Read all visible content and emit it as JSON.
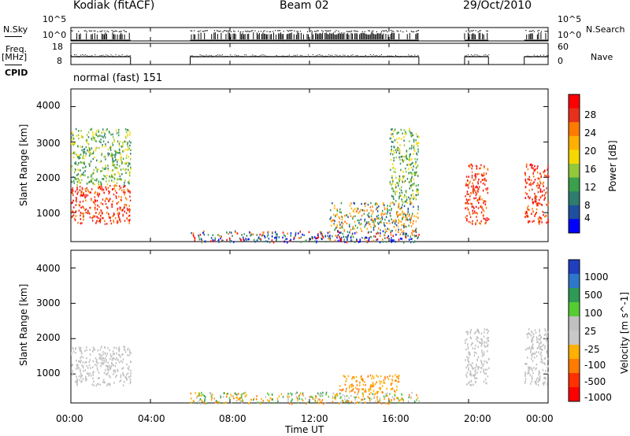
{
  "header": {
    "site": "Kodiak (fitACF)",
    "beam": "Beam 02",
    "date": "29/Oct/2010"
  },
  "top_panels": {
    "nsky_label": "N.Sky",
    "nsearch_label": "N.Search",
    "freq_label_1": "Freq.",
    "freq_label_2": "[MHz]",
    "nave_label": "Nave",
    "cpid_label": "CPID",
    "cpid_value": "normal (fast) 151",
    "nsky_ticks": [
      "10^5",
      "10^0"
    ],
    "nsearch_ticks": [
      "10^5",
      "10^0"
    ],
    "freq_ticks": [
      "18",
      "8"
    ],
    "nave_ticks": [
      "60",
      "0"
    ]
  },
  "chart_data": [
    {
      "type": "heatmap",
      "name": "power",
      "ylabel": "Slant Range [km]",
      "xlabel": "Time UT",
      "yticks": [
        "4000",
        "3000",
        "2000",
        "1000"
      ],
      "ylim": [
        180,
        4500
      ],
      "colorbar_label": "Power [dB]",
      "colorbar_ticks": [
        "28",
        "24",
        "20",
        "16",
        "12",
        "8",
        "4"
      ],
      "colors": [
        "#ff0000",
        "#e8301c",
        "#ff7b00",
        "#ffb000",
        "#f5d800",
        "#93c83a",
        "#3aa04a",
        "#2d7d6e",
        "#1f4f9f",
        "#0000ff"
      ],
      "data_regions": [
        {
          "t": [
            0.0,
            3.0
          ],
          "r": [
            700,
            1800
          ],
          "level": "high"
        },
        {
          "t": [
            0.0,
            3.0
          ],
          "r": [
            1800,
            3400
          ],
          "level": "low"
        },
        {
          "t": [
            6.0,
            17.5
          ],
          "r": [
            180,
            500
          ],
          "level": "mixed"
        },
        {
          "t": [
            13.0,
            17.5
          ],
          "r": [
            500,
            1300
          ],
          "level": "medium"
        },
        {
          "t": [
            16.0,
            17.5
          ],
          "r": [
            1300,
            3400
          ],
          "level": "low"
        },
        {
          "t": [
            19.8,
            21.0
          ],
          "r": [
            700,
            2400
          ],
          "level": "high"
        },
        {
          "t": [
            22.8,
            24.0
          ],
          "r": [
            700,
            2400
          ],
          "level": "high"
        }
      ]
    },
    {
      "type": "heatmap",
      "name": "velocity",
      "ylabel": "Slant Range [km]",
      "xlabel": "Time UT",
      "xticks": [
        "00:00",
        "04:00",
        "08:00",
        "12:00",
        "16:00",
        "20:00",
        "00:00"
      ],
      "yticks": [
        "4000",
        "3000",
        "2000",
        "1000"
      ],
      "ylim": [
        180,
        4500
      ],
      "colorbar_label": "Velocity [m s^-1]",
      "colorbar_ticks": [
        "1000",
        "500",
        "100",
        "25",
        "-25",
        "-100",
        "-500",
        "-1000"
      ],
      "colors": [
        "#1f3fbf",
        "#2d78c8",
        "#2d9a55",
        "#55cc33",
        "#c0c0c0",
        "#c8c8c8",
        "#ffb000",
        "#ff7b00",
        "#ff3000",
        "#ff0000"
      ],
      "data_regions": [
        {
          "t": [
            0.0,
            3.0
          ],
          "r": [
            700,
            1800
          ],
          "level": "ground"
        },
        {
          "t": [
            6.0,
            17.5
          ],
          "r": [
            180,
            500
          ],
          "level": "mixed"
        },
        {
          "t": [
            13.5,
            16.5
          ],
          "r": [
            500,
            1000
          ],
          "level": "negative"
        },
        {
          "t": [
            19.8,
            21.0
          ],
          "r": [
            700,
            2300
          ],
          "level": "ground"
        },
        {
          "t": [
            22.8,
            24.0
          ],
          "r": [
            700,
            2300
          ],
          "level": "ground"
        }
      ]
    }
  ]
}
